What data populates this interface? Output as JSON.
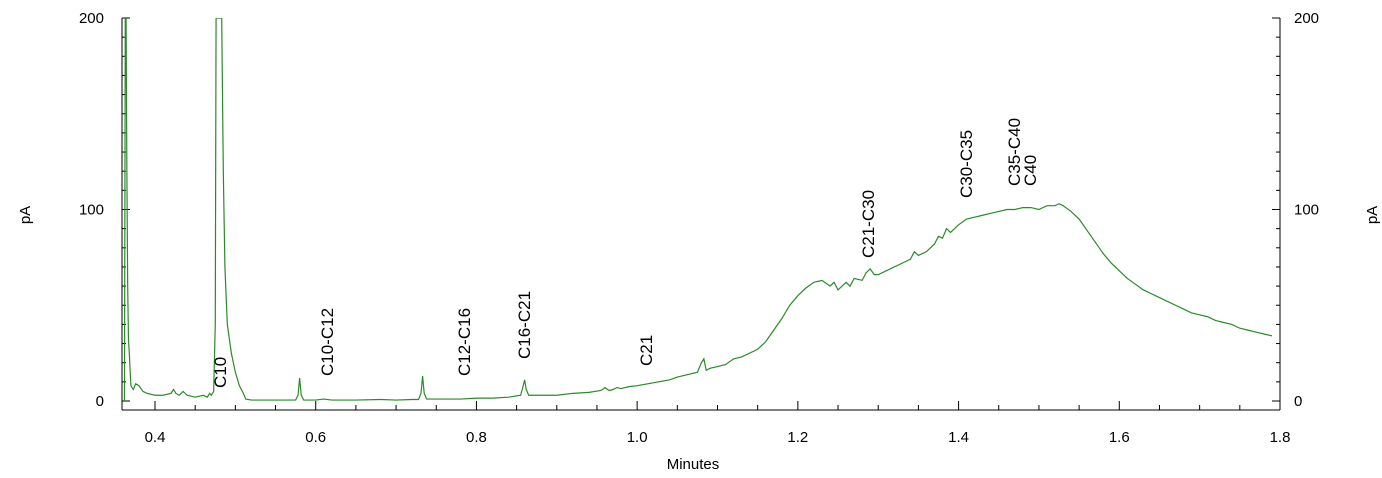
{
  "chart_data": {
    "type": "line",
    "title": "",
    "xlabel": "Minutes",
    "ylabel_left": "pA",
    "ylabel_right": "pA",
    "xlim": [
      0.36,
      1.8
    ],
    "ylim": [
      0,
      200
    ],
    "x_ticks": [
      0.4,
      0.6,
      0.8,
      1.0,
      1.2,
      1.4,
      1.6,
      1.8
    ],
    "x_tick_labels": [
      "0.4",
      "0.6",
      "0.8",
      "1.0",
      "1.2",
      "1.4",
      "1.6",
      "1.8"
    ],
    "y_ticks": [
      0,
      100,
      200
    ],
    "y_tick_labels": [
      "0",
      "100",
      "200"
    ],
    "grid": false,
    "line_color": "#2a8a2a",
    "annotations": [
      {
        "text": "C10",
        "x": 0.475
      },
      {
        "text": "C10-C12",
        "x": 0.61
      },
      {
        "text": "C12-C16",
        "x": 0.785
      },
      {
        "text": "C16-C21",
        "x": 0.86
      },
      {
        "text": "C21",
        "x": 1.01
      },
      {
        "text": "C21-C30",
        "x": 1.28
      },
      {
        "text": "C30-C35",
        "x": 1.41
      },
      {
        "text": "C35-C40",
        "x": 1.46
      },
      {
        "text": "C40",
        "x": 1.475
      }
    ],
    "series": [
      {
        "values": [
          [
            0.362,
            0
          ],
          [
            0.363,
            200
          ],
          [
            0.364,
            200
          ],
          [
            0.365,
            120
          ],
          [
            0.366,
            60
          ],
          [
            0.367,
            32
          ],
          [
            0.368,
            25
          ],
          [
            0.37,
            8
          ],
          [
            0.373,
            6
          ],
          [
            0.376,
            9
          ],
          [
            0.38,
            8
          ],
          [
            0.385,
            5
          ],
          [
            0.39,
            4
          ],
          [
            0.4,
            3
          ],
          [
            0.41,
            3
          ],
          [
            0.42,
            4
          ],
          [
            0.423,
            6
          ],
          [
            0.426,
            4
          ],
          [
            0.43,
            3
          ],
          [
            0.435,
            5
          ],
          [
            0.44,
            3
          ],
          [
            0.45,
            2
          ],
          [
            0.46,
            3
          ],
          [
            0.465,
            2
          ],
          [
            0.468,
            4
          ],
          [
            0.47,
            3
          ],
          [
            0.473,
            5
          ],
          [
            0.475,
            40
          ],
          [
            0.476,
            200
          ],
          [
            0.483,
            200
          ],
          [
            0.485,
            120
          ],
          [
            0.487,
            70
          ],
          [
            0.49,
            40
          ],
          [
            0.495,
            25
          ],
          [
            0.5,
            15
          ],
          [
            0.505,
            8
          ],
          [
            0.51,
            4
          ],
          [
            0.513,
            1
          ],
          [
            0.52,
            0.5
          ],
          [
            0.55,
            0.5
          ],
          [
            0.575,
            0.5
          ],
          [
            0.578,
            3
          ],
          [
            0.58,
            12
          ],
          [
            0.582,
            3
          ],
          [
            0.585,
            0.5
          ],
          [
            0.6,
            0.5
          ],
          [
            0.61,
            1
          ],
          [
            0.62,
            0.5
          ],
          [
            0.65,
            0.5
          ],
          [
            0.68,
            0.8
          ],
          [
            0.7,
            0.5
          ],
          [
            0.72,
            0.8
          ],
          [
            0.728,
            0.8
          ],
          [
            0.731,
            4
          ],
          [
            0.733,
            13
          ],
          [
            0.735,
            4
          ],
          [
            0.738,
            1
          ],
          [
            0.75,
            1
          ],
          [
            0.78,
            1
          ],
          [
            0.8,
            1.5
          ],
          [
            0.82,
            1.5
          ],
          [
            0.84,
            2
          ],
          [
            0.855,
            3
          ],
          [
            0.857,
            6
          ],
          [
            0.86,
            11
          ],
          [
            0.862,
            6
          ],
          [
            0.865,
            3
          ],
          [
            0.88,
            3
          ],
          [
            0.9,
            3
          ],
          [
            0.92,
            4
          ],
          [
            0.94,
            4.5
          ],
          [
            0.955,
            5.5
          ],
          [
            0.96,
            7
          ],
          [
            0.965,
            5.5
          ],
          [
            0.97,
            6
          ],
          [
            0.975,
            7
          ],
          [
            0.98,
            6.5
          ],
          [
            0.99,
            7.5
          ],
          [
            1.0,
            8
          ],
          [
            1.02,
            9.5
          ],
          [
            1.04,
            11
          ],
          [
            1.05,
            12.5
          ],
          [
            1.06,
            13.5
          ],
          [
            1.075,
            15
          ],
          [
            1.08,
            20
          ],
          [
            1.083,
            22
          ],
          [
            1.086,
            16
          ],
          [
            1.09,
            17
          ],
          [
            1.1,
            18
          ],
          [
            1.11,
            19
          ],
          [
            1.12,
            22
          ],
          [
            1.13,
            23
          ],
          [
            1.14,
            25
          ],
          [
            1.15,
            27
          ],
          [
            1.16,
            31
          ],
          [
            1.17,
            37
          ],
          [
            1.18,
            43
          ],
          [
            1.19,
            50
          ],
          [
            1.2,
            55
          ],
          [
            1.21,
            59
          ],
          [
            1.22,
            62
          ],
          [
            1.23,
            63
          ],
          [
            1.24,
            60
          ],
          [
            1.245,
            62
          ],
          [
            1.25,
            58
          ],
          [
            1.26,
            62
          ],
          [
            1.265,
            60
          ],
          [
            1.27,
            64
          ],
          [
            1.28,
            63
          ],
          [
            1.285,
            67
          ],
          [
            1.29,
            69
          ],
          [
            1.295,
            66
          ],
          [
            1.3,
            66
          ],
          [
            1.31,
            68
          ],
          [
            1.32,
            70
          ],
          [
            1.33,
            72
          ],
          [
            1.34,
            74
          ],
          [
            1.345,
            78
          ],
          [
            1.35,
            76
          ],
          [
            1.36,
            78
          ],
          [
            1.37,
            82
          ],
          [
            1.375,
            86
          ],
          [
            1.38,
            85
          ],
          [
            1.385,
            90
          ],
          [
            1.39,
            88
          ],
          [
            1.4,
            92
          ],
          [
            1.41,
            95
          ],
          [
            1.42,
            96
          ],
          [
            1.43,
            97
          ],
          [
            1.44,
            98
          ],
          [
            1.45,
            99
          ],
          [
            1.46,
            100
          ],
          [
            1.47,
            100
          ],
          [
            1.48,
            101
          ],
          [
            1.49,
            101
          ],
          [
            1.5,
            100
          ],
          [
            1.51,
            102
          ],
          [
            1.52,
            102
          ],
          [
            1.525,
            103
          ],
          [
            1.53,
            102
          ],
          [
            1.54,
            99
          ],
          [
            1.55,
            95
          ],
          [
            1.56,
            89
          ],
          [
            1.57,
            83
          ],
          [
            1.58,
            77
          ],
          [
            1.59,
            72
          ],
          [
            1.6,
            68
          ],
          [
            1.61,
            64
          ],
          [
            1.62,
            61
          ],
          [
            1.63,
            58
          ],
          [
            1.64,
            56
          ],
          [
            1.65,
            54
          ],
          [
            1.66,
            52
          ],
          [
            1.67,
            50
          ],
          [
            1.68,
            48
          ],
          [
            1.69,
            46
          ],
          [
            1.7,
            45
          ],
          [
            1.71,
            44
          ],
          [
            1.72,
            42
          ],
          [
            1.73,
            41
          ],
          [
            1.74,
            40
          ],
          [
            1.75,
            38
          ],
          [
            1.76,
            37
          ],
          [
            1.77,
            36
          ],
          [
            1.78,
            35
          ],
          [
            1.79,
            34
          ]
        ]
      }
    ]
  }
}
